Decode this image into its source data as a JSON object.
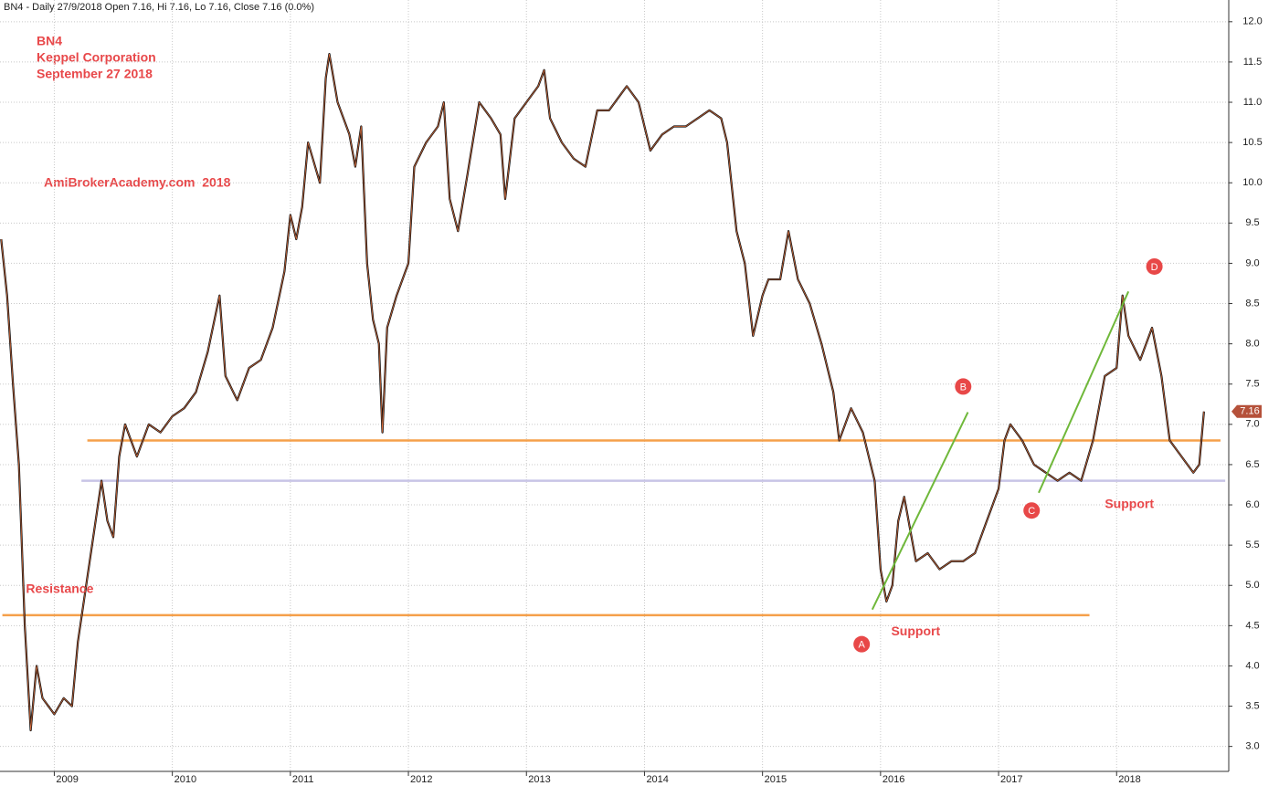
{
  "chart_data": {
    "type": "line",
    "header": "BN4 - Daily 27/9/2018 Open 7.16, Hi 7.16, Lo 7.16, Close 7.16 (0.0%)",
    "title_lines": [
      "BN4",
      "Keppel Corporation",
      "September 27 2018"
    ],
    "watermark": "AmiBrokerAcademy.com  2018",
    "x": [
      2008.55,
      2008.6,
      2008.65,
      2008.7,
      2008.75,
      2008.8,
      2008.85,
      2008.9,
      2008.95,
      2009.0,
      2009.08,
      2009.15,
      2009.2,
      2009.25,
      2009.33,
      2009.4,
      2009.45,
      2009.5,
      2009.55,
      2009.6,
      2009.7,
      2009.8,
      2009.9,
      2010.0,
      2010.1,
      2010.2,
      2010.3,
      2010.4,
      2010.45,
      2010.55,
      2010.65,
      2010.75,
      2010.85,
      2010.95,
      2011.0,
      2011.05,
      2011.1,
      2011.15,
      2011.25,
      2011.3,
      2011.33,
      2011.4,
      2011.45,
      2011.5,
      2011.55,
      2011.6,
      2011.65,
      2011.7,
      2011.75,
      2011.78,
      2011.82,
      2011.9,
      2012.0,
      2012.05,
      2012.15,
      2012.25,
      2012.3,
      2012.35,
      2012.42,
      2012.5,
      2012.6,
      2012.7,
      2012.78,
      2012.82,
      2012.9,
      2013.0,
      2013.1,
      2013.15,
      2013.2,
      2013.3,
      2013.4,
      2013.5,
      2013.6,
      2013.7,
      2013.8,
      2013.85,
      2013.95,
      2014.05,
      2014.15,
      2014.25,
      2014.35,
      2014.45,
      2014.55,
      2014.65,
      2014.7,
      2014.78,
      2014.85,
      2014.92,
      2015.0,
      2015.05,
      2015.15,
      2015.22,
      2015.3,
      2015.4,
      2015.5,
      2015.6,
      2015.65,
      2015.75,
      2015.85,
      2015.95,
      2016.0,
      2016.05,
      2016.1,
      2016.15,
      2016.2,
      2016.25,
      2016.3,
      2016.4,
      2016.5,
      2016.6,
      2016.7,
      2016.8,
      2016.9,
      2017.0,
      2017.05,
      2017.1,
      2017.2,
      2017.3,
      2017.4,
      2017.5,
      2017.6,
      2017.7,
      2017.8,
      2017.9,
      2018.0,
      2018.05,
      2018.1,
      2018.2,
      2018.3,
      2018.38,
      2018.45,
      2018.55,
      2018.65,
      2018.7,
      2018.74
    ],
    "series": [
      {
        "name": "BN4",
        "color": "#111111",
        "values": [
          9.3,
          8.6,
          7.5,
          6.5,
          4.5,
          3.2,
          4.0,
          3.6,
          3.5,
          3.4,
          3.6,
          3.5,
          4.3,
          4.8,
          5.6,
          6.3,
          5.8,
          5.6,
          6.6,
          7.0,
          6.6,
          7.0,
          6.9,
          7.1,
          7.2,
          7.4,
          7.9,
          8.6,
          7.6,
          7.3,
          7.7,
          7.8,
          8.2,
          8.9,
          9.6,
          9.3,
          9.7,
          10.5,
          10.0,
          11.3,
          11.6,
          11.0,
          10.8,
          10.6,
          10.2,
          10.7,
          9.0,
          8.3,
          8.0,
          6.9,
          8.2,
          8.6,
          9.0,
          10.2,
          10.5,
          10.7,
          11.0,
          9.8,
          9.4,
          10.1,
          11.0,
          10.8,
          10.6,
          9.8,
          10.8,
          11.0,
          11.2,
          11.4,
          10.8,
          10.5,
          10.3,
          10.2,
          10.9,
          10.9,
          11.1,
          11.2,
          11.0,
          10.4,
          10.6,
          10.7,
          10.7,
          10.8,
          10.9,
          10.8,
          10.5,
          9.4,
          9.0,
          8.1,
          8.6,
          8.8,
          8.8,
          9.4,
          8.8,
          8.5,
          8.0,
          7.4,
          6.8,
          7.2,
          6.9,
          6.3,
          5.2,
          4.8,
          5.0,
          5.8,
          6.1,
          5.7,
          5.3,
          5.4,
          5.2,
          5.3,
          5.3,
          5.4,
          5.8,
          6.2,
          6.8,
          7.0,
          6.8,
          6.5,
          6.4,
          6.3,
          6.4,
          6.3,
          6.8,
          7.6,
          7.7,
          8.6,
          8.1,
          7.8,
          8.2,
          7.6,
          6.8,
          6.6,
          6.4,
          6.5,
          7.16
        ]
      }
    ],
    "last_price": 7.16,
    "xlim": [
      2008.54,
      2018.95
    ],
    "xticks": [
      2009,
      2010,
      2011,
      2012,
      2013,
      2014,
      2015,
      2016,
      2017,
      2018
    ],
    "ylim": [
      2.69,
      12.27
    ],
    "yticks": [
      {
        "value": 3,
        "label": "3.0"
      },
      {
        "value": 3.5,
        "label": "3.5"
      },
      {
        "value": 4,
        "label": "4.0"
      },
      {
        "value": 4.5,
        "label": "4.5"
      },
      {
        "value": 5,
        "label": "5.0"
      },
      {
        "value": 5.5,
        "label": "5.5"
      },
      {
        "value": 6,
        "label": "6.0"
      },
      {
        "value": 6.5,
        "label": "6.5"
      },
      {
        "value": 7,
        "label": "7.0"
      },
      {
        "value": 7.5,
        "label": "7.5"
      },
      {
        "value": 8,
        "label": "8.0"
      },
      {
        "value": 8.5,
        "label": "8.5"
      },
      {
        "value": 9,
        "label": "9.0"
      },
      {
        "value": 9.5,
        "label": "9.5"
      },
      {
        "value": 10,
        "label": "10.0"
      },
      {
        "value": 10.5,
        "label": "10.5"
      },
      {
        "value": 11,
        "label": "11.0"
      },
      {
        "value": 11.5,
        "label": "11.5"
      },
      {
        "value": 12,
        "label": "12.0"
      }
    ],
    "grid": true,
    "hlines": [
      {
        "value": 6.8,
        "from": 2009.28,
        "to": 2018.88,
        "color": "#f5a04a"
      },
      {
        "value": 6.3,
        "from": 2009.23,
        "to": 2018.92,
        "color": "#c8c4e6"
      },
      {
        "value": 4.63,
        "from": 2008.56,
        "to": 2017.77,
        "color": "#f5a04a"
      }
    ],
    "trendlines": [
      {
        "x": [
          2015.93,
          2016.74
        ],
        "y": [
          4.7,
          7.15
        ],
        "color": "#6fb83a"
      },
      {
        "x": [
          2017.34,
          2018.1
        ],
        "y": [
          6.15,
          8.65
        ],
        "color": "#6fb83a"
      }
    ],
    "annotations": [
      {
        "text": "Resistance",
        "x": 2008.76,
        "y": 4.95
      },
      {
        "text": "Support",
        "x": 2016.09,
        "y": 4.42
      },
      {
        "text": "Support",
        "x": 2017.9,
        "y": 6.0
      }
    ],
    "points": [
      {
        "text": "A",
        "x": 2015.84,
        "y": 4.27
      },
      {
        "text": "B",
        "x": 2016.7,
        "y": 7.47
      },
      {
        "text": "C",
        "x": 2017.28,
        "y": 5.93
      },
      {
        "text": "D",
        "x": 2018.32,
        "y": 8.96
      }
    ]
  }
}
